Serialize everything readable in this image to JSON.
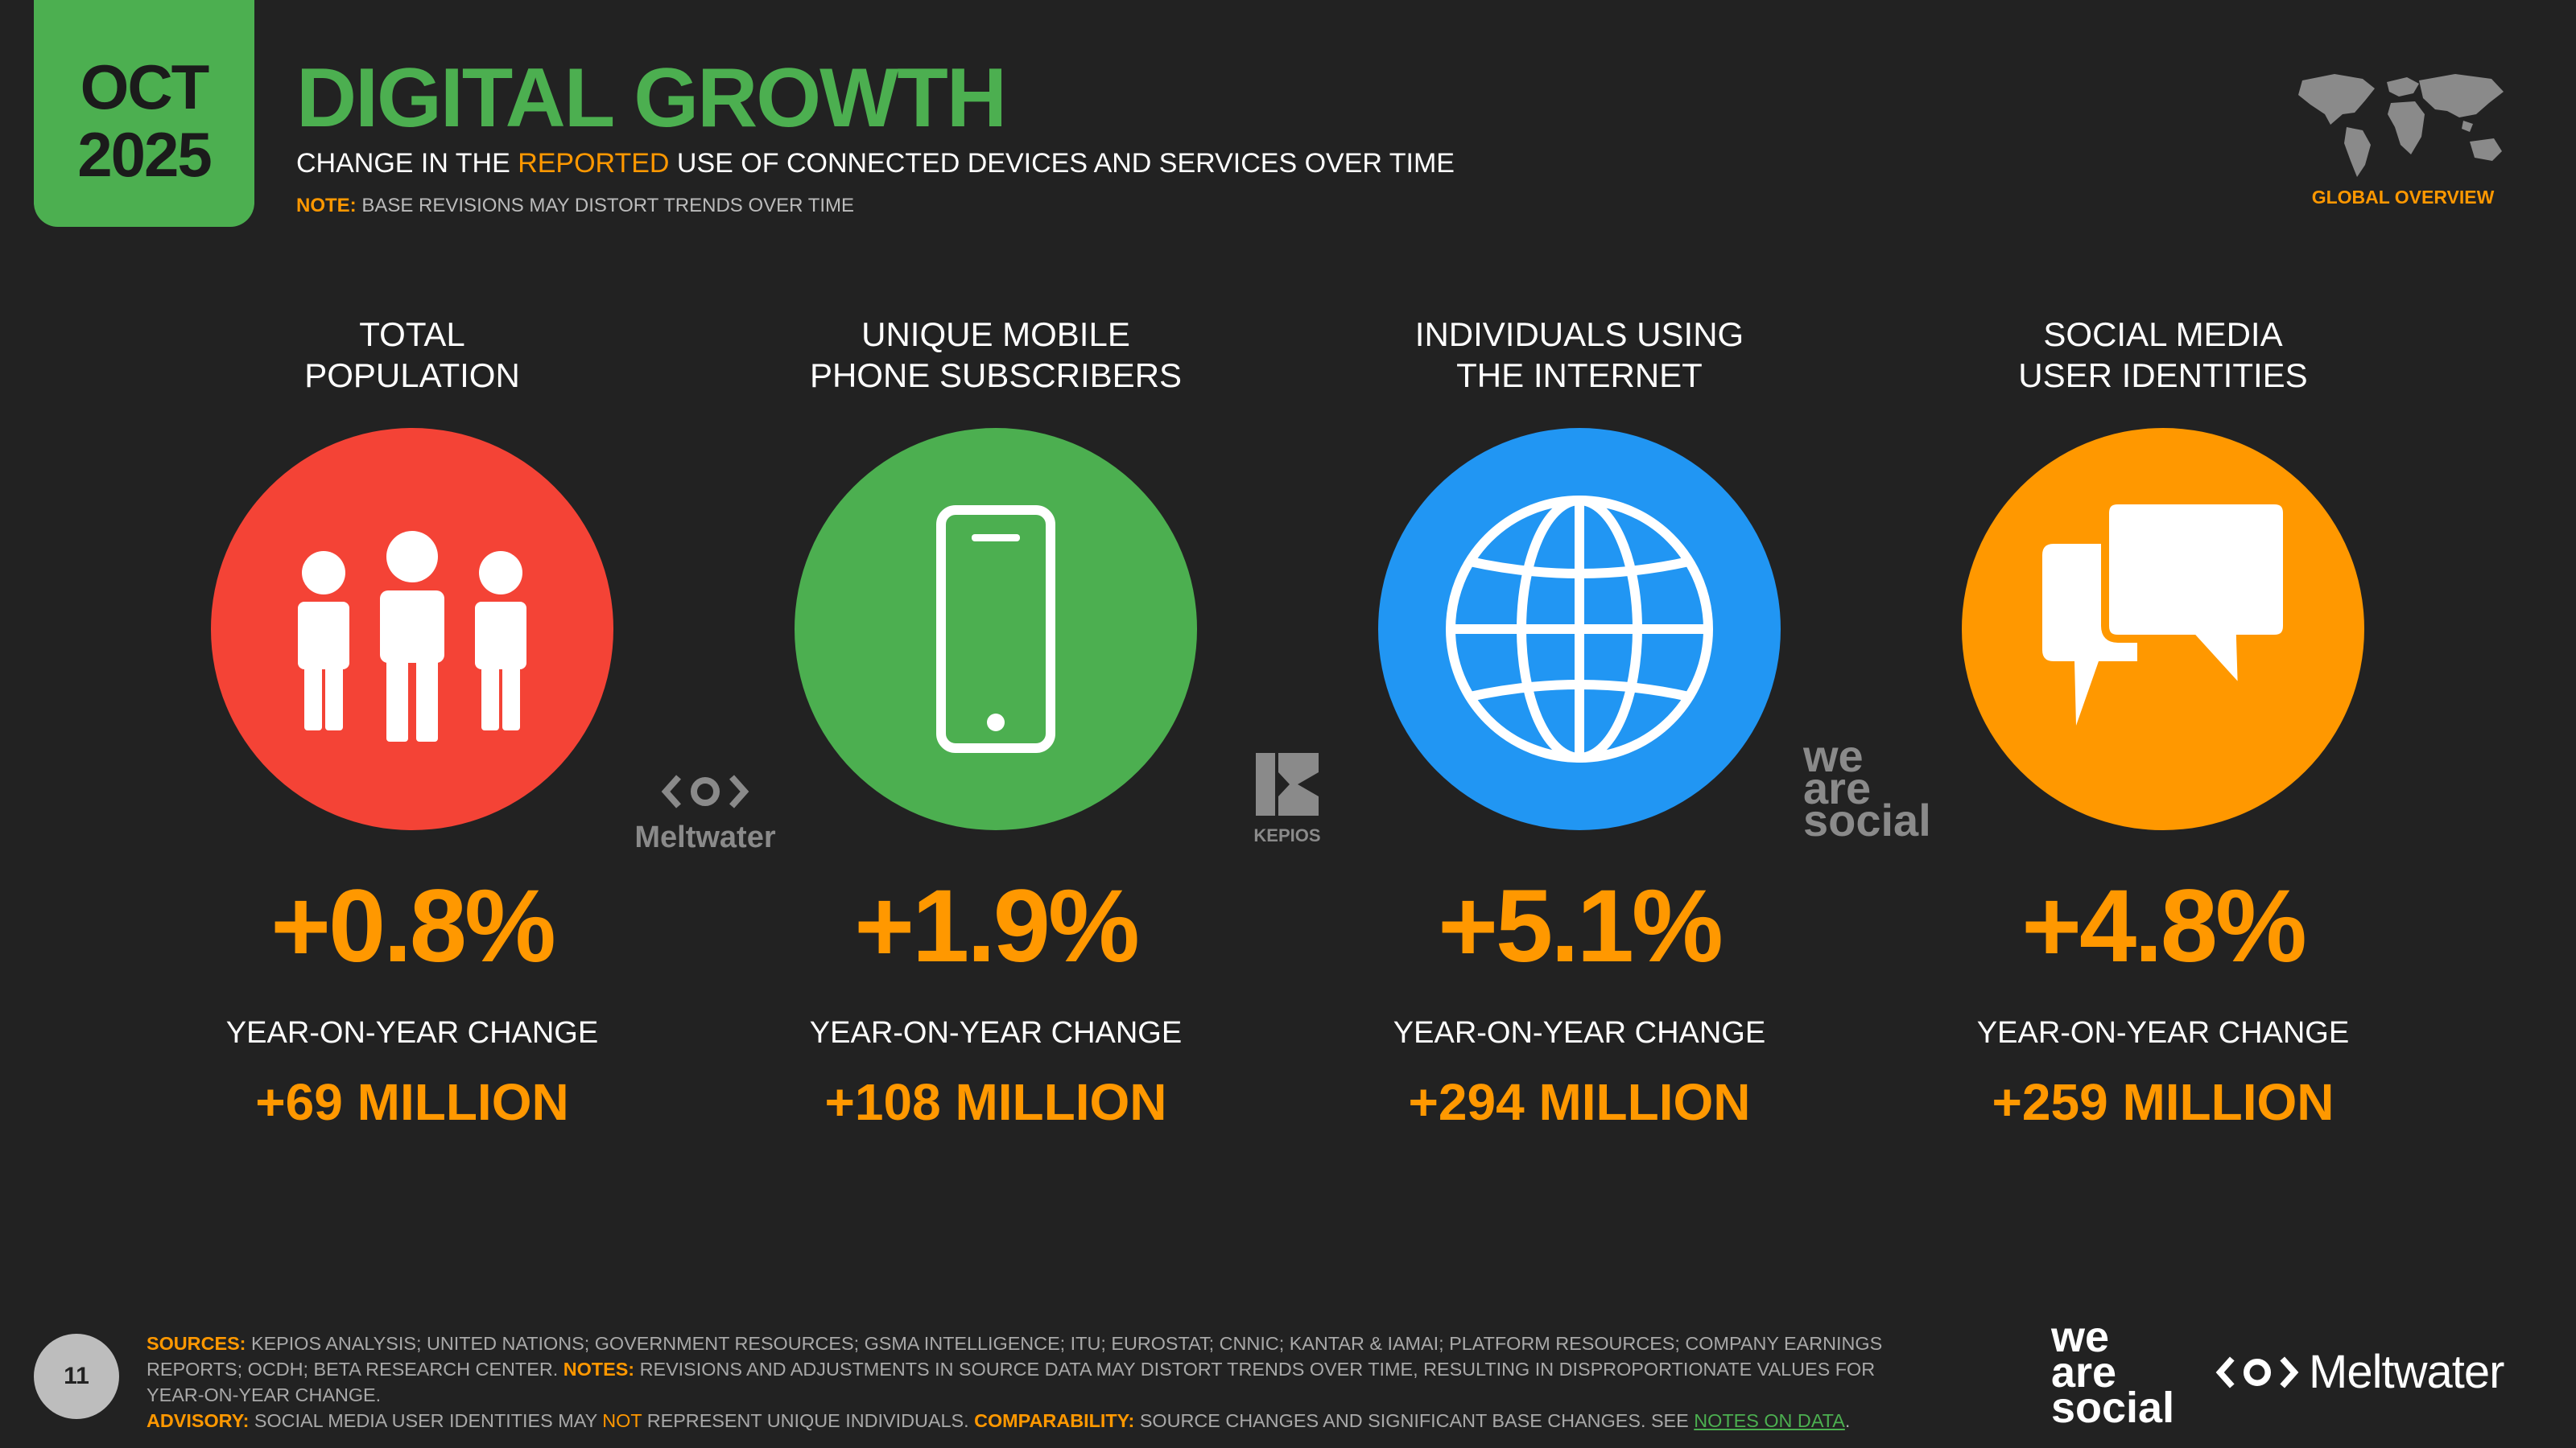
{
  "header": {
    "date_month": "OCT",
    "date_year": "2025",
    "title": "DIGITAL GROWTH",
    "subtitle_pre": "CHANGE IN THE ",
    "subtitle_highlight": "REPORTED",
    "subtitle_post": " USE OF CONNECTED DEVICES AND SERVICES OVER TIME",
    "note_label": "NOTE:",
    "note_text": " BASE REVISIONS MAY DISTORT TRENDS OVER TIME",
    "region_label": "GLOBAL OVERVIEW"
  },
  "metrics": [
    {
      "label_line1": "TOTAL",
      "label_line2": "POPULATION",
      "percent": "+0.8%",
      "change_label": "YEAR-ON-YEAR CHANGE",
      "absolute": "+69 MILLION",
      "color": "#f44336",
      "icon": "people-icon"
    },
    {
      "label_line1": "UNIQUE MOBILE",
      "label_line2": "PHONE SUBSCRIBERS",
      "percent": "+1.9%",
      "change_label": "YEAR-ON-YEAR CHANGE",
      "absolute": "+108 MILLION",
      "color": "#4caf50",
      "icon": "mobile-phone-icon"
    },
    {
      "label_line1": "INDIVIDUALS USING",
      "label_line2": "THE INTERNET",
      "percent": "+5.1%",
      "change_label": "YEAR-ON-YEAR CHANGE",
      "absolute": "+294 MILLION",
      "color": "#2196f3",
      "icon": "globe-icon"
    },
    {
      "label_line1": "SOCIAL MEDIA",
      "label_line2": "USER IDENTITIES",
      "percent": "+4.8%",
      "change_label": "YEAR-ON-YEAR CHANGE",
      "absolute": "+259 MILLION",
      "color": "#ff9800",
      "icon": "chat-bubbles-icon"
    }
  ],
  "watermarks": {
    "meltwater": "Meltwater",
    "kepios": "KEPIOS",
    "we": "we",
    "are": "are",
    "social": "social"
  },
  "footer": {
    "page_number": "11",
    "sources_label": "SOURCES:",
    "sources_text": " KEPIOS ANALYSIS; UNITED NATIONS; GOVERNMENT RESOURCES; GSMA INTELLIGENCE; ITU; EUROSTAT; CNNIC; KANTAR & IAMAI; PLATFORM RESOURCES; COMPANY EARNINGS REPORTS; OCDH; BETA RESEARCH CENTER. ",
    "notes_label": "NOTES:",
    "notes_text": " REVISIONS AND ADJUSTMENTS IN SOURCE DATA MAY DISTORT TRENDS OVER TIME, RESULTING IN DISPROPORTIONATE VALUES FOR YEAR-ON-YEAR CHANGE.",
    "advisory_label": "ADVISORY:",
    "advisory_pre": " SOCIAL MEDIA USER IDENTITIES MAY ",
    "advisory_highlight": "NOT",
    "advisory_post": " REPRESENT UNIQUE INDIVIDUALS. ",
    "comparability_label": "COMPARABILITY:",
    "comparability_text": " SOURCE CHANGES AND SIGNIFICANT BASE CHANGES. SEE ",
    "notes_link": "NOTES ON DATA",
    "period": ".",
    "logo_we": "we",
    "logo_are": "are",
    "logo_social": "social",
    "logo_meltwater": "Meltwater"
  },
  "colors": {
    "background": "#222222",
    "green": "#4caf50",
    "orange": "#ff9800",
    "red": "#f44336",
    "blue": "#2196f3"
  }
}
